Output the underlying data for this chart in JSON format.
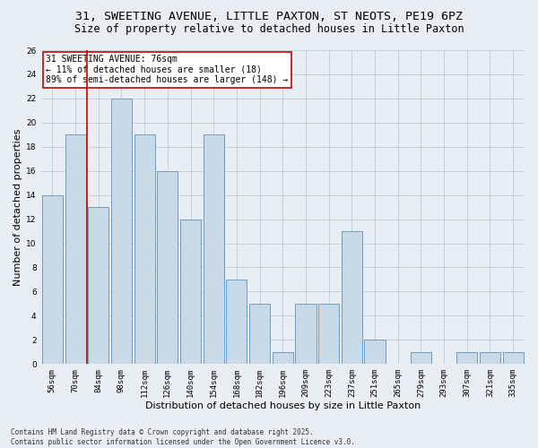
{
  "title_line1": "31, SWEETING AVENUE, LITTLE PAXTON, ST NEOTS, PE19 6PZ",
  "title_line2": "Size of property relative to detached houses in Little Paxton",
  "xlabel": "Distribution of detached houses by size in Little Paxton",
  "ylabel": "Number of detached properties",
  "categories": [
    "56sqm",
    "70sqm",
    "84sqm",
    "98sqm",
    "112sqm",
    "126sqm",
    "140sqm",
    "154sqm",
    "168sqm",
    "182sqm",
    "196sqm",
    "209sqm",
    "223sqm",
    "237sqm",
    "251sqm",
    "265sqm",
    "279sqm",
    "293sqm",
    "307sqm",
    "321sqm",
    "335sqm"
  ],
  "values": [
    14,
    19,
    13,
    22,
    19,
    16,
    12,
    19,
    7,
    5,
    1,
    5,
    5,
    11,
    2,
    0,
    1,
    0,
    1,
    1,
    1
  ],
  "bar_color": "#c9d9e8",
  "bar_edge_color": "#6b9ec8",
  "vline_x_pos": 1.5,
  "vline_color": "#cc0000",
  "annotation_text": "31 SWEETING AVENUE: 76sqm\n← 11% of detached houses are smaller (18)\n89% of semi-detached houses are larger (148) →",
  "annotation_box_color": "#ffffff",
  "annotation_box_edge": "#cc0000",
  "ylim": [
    0,
    26
  ],
  "yticks": [
    0,
    2,
    4,
    6,
    8,
    10,
    12,
    14,
    16,
    18,
    20,
    22,
    24,
    26
  ],
  "footnote": "Contains HM Land Registry data © Crown copyright and database right 2025.\nContains public sector information licensed under the Open Government Licence v3.0.",
  "bg_color": "#e8eef4",
  "grid_color": "#c0ccd8",
  "title_fontsize": 9.5,
  "subtitle_fontsize": 8.5,
  "tick_fontsize": 6.5,
  "label_fontsize": 8,
  "footnote_fontsize": 5.5,
  "annot_fontsize": 7
}
